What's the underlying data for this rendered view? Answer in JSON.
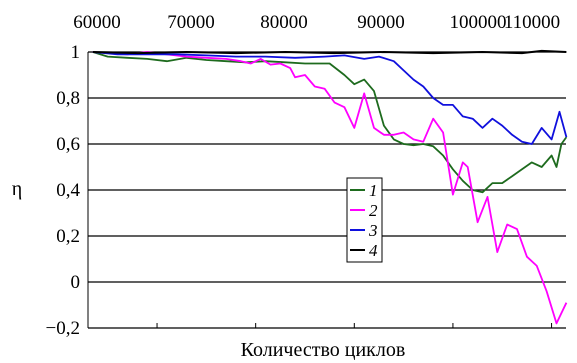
{
  "chart_data": {
    "type": "line",
    "xlabel": "Количество циклов",
    "ylabel": "η",
    "xlim": [
      63000,
      111500
    ],
    "ylim": [
      -0.2,
      1.0
    ],
    "x_ticks": [
      60000,
      70000,
      80000,
      90000,
      100000,
      110000
    ],
    "x_tick_labels": [
      "60000",
      "70000",
      "80000",
      "90000",
      "100000",
      "110000"
    ],
    "y_ticks": [
      1,
      0.8,
      0.6,
      0.4,
      0.2,
      0,
      -0.2
    ],
    "y_tick_labels": [
      "1",
      "0,8",
      "0,6",
      "0,4",
      "0,2",
      "0",
      "−0,2"
    ],
    "grid": "horizontal",
    "legend_position": "center",
    "series": [
      {
        "name": "1",
        "color": "#1e6b1e",
        "points": [
          [
            63500,
            1
          ],
          [
            65000,
            0.98
          ],
          [
            67000,
            0.975
          ],
          [
            69000,
            0.97
          ],
          [
            71000,
            0.96
          ],
          [
            73000,
            0.975
          ],
          [
            75000,
            0.965
          ],
          [
            77000,
            0.96
          ],
          [
            79000,
            0.955
          ],
          [
            81000,
            0.96
          ],
          [
            83000,
            0.955
          ],
          [
            85000,
            0.95
          ],
          [
            86000,
            0.95
          ],
          [
            87500,
            0.95
          ],
          [
            89000,
            0.9
          ],
          [
            90000,
            0.86
          ],
          [
            91000,
            0.88
          ],
          [
            92000,
            0.83
          ],
          [
            93000,
            0.68
          ],
          [
            94000,
            0.62
          ],
          [
            95000,
            0.6
          ],
          [
            96000,
            0.595
          ],
          [
            97000,
            0.6
          ],
          [
            98000,
            0.59
          ],
          [
            99000,
            0.55
          ],
          [
            100000,
            0.49
          ],
          [
            101000,
            0.44
          ],
          [
            102000,
            0.4
          ],
          [
            103000,
            0.39
          ],
          [
            104000,
            0.43
          ],
          [
            105000,
            0.43
          ],
          [
            106000,
            0.46
          ],
          [
            107000,
            0.49
          ],
          [
            108000,
            0.52
          ],
          [
            109000,
            0.5
          ],
          [
            110000,
            0.55
          ],
          [
            110500,
            0.5
          ],
          [
            111000,
            0.6
          ],
          [
            111500,
            0.63
          ]
        ]
      },
      {
        "name": "2",
        "color": "#ff00ff",
        "points": [
          [
            63500,
            1
          ],
          [
            65000,
            0.995
          ],
          [
            67000,
            0.99
          ],
          [
            69000,
            1
          ],
          [
            71000,
            0.99
          ],
          [
            73000,
            0.98
          ],
          [
            75000,
            0.975
          ],
          [
            77000,
            0.97
          ],
          [
            78500,
            0.96
          ],
          [
            79500,
            0.95
          ],
          [
            80500,
            0.97
          ],
          [
            81500,
            0.945
          ],
          [
            82500,
            0.95
          ],
          [
            83500,
            0.93
          ],
          [
            84000,
            0.89
          ],
          [
            85000,
            0.9
          ],
          [
            86000,
            0.85
          ],
          [
            87000,
            0.84
          ],
          [
            88000,
            0.78
          ],
          [
            89000,
            0.76
          ],
          [
            90000,
            0.67
          ],
          [
            91000,
            0.82
          ],
          [
            92000,
            0.67
          ],
          [
            93000,
            0.64
          ],
          [
            94000,
            0.64
          ],
          [
            95000,
            0.65
          ],
          [
            96000,
            0.62
          ],
          [
            97000,
            0.61
          ],
          [
            98000,
            0.71
          ],
          [
            99000,
            0.65
          ],
          [
            100000,
            0.38
          ],
          [
            101000,
            0.52
          ],
          [
            101500,
            0.5
          ],
          [
            102500,
            0.26
          ],
          [
            103500,
            0.37
          ],
          [
            104500,
            0.13
          ],
          [
            105500,
            0.25
          ],
          [
            106500,
            0.23
          ],
          [
            107500,
            0.11
          ],
          [
            108500,
            0.07
          ],
          [
            109500,
            -0.04
          ],
          [
            110500,
            -0.18
          ],
          [
            111500,
            -0.09
          ]
        ]
      },
      {
        "name": "3",
        "color": "#1010dd",
        "points": [
          [
            63500,
            1
          ],
          [
            66000,
            0.99
          ],
          [
            69000,
            0.99
          ],
          [
            72000,
            0.99
          ],
          [
            75000,
            0.985
          ],
          [
            78000,
            0.98
          ],
          [
            81000,
            0.98
          ],
          [
            84000,
            0.975
          ],
          [
            87000,
            0.98
          ],
          [
            89000,
            0.985
          ],
          [
            91000,
            0.97
          ],
          [
            92500,
            0.98
          ],
          [
            94000,
            0.96
          ],
          [
            95000,
            0.92
          ],
          [
            96000,
            0.88
          ],
          [
            97000,
            0.85
          ],
          [
            98000,
            0.8
          ],
          [
            99000,
            0.77
          ],
          [
            100000,
            0.77
          ],
          [
            101000,
            0.72
          ],
          [
            102000,
            0.71
          ],
          [
            103000,
            0.67
          ],
          [
            104000,
            0.71
          ],
          [
            105000,
            0.68
          ],
          [
            106000,
            0.64
          ],
          [
            107000,
            0.61
          ],
          [
            108000,
            0.6
          ],
          [
            109000,
            0.67
          ],
          [
            110000,
            0.62
          ],
          [
            110800,
            0.74
          ],
          [
            111500,
            0.63
          ]
        ]
      },
      {
        "name": "4",
        "color": "#000000",
        "points": [
          [
            63500,
            1
          ],
          [
            68000,
            0.995
          ],
          [
            73000,
            1
          ],
          [
            78000,
            0.995
          ],
          [
            83000,
            1
          ],
          [
            88000,
            0.995
          ],
          [
            93000,
            1
          ],
          [
            98000,
            0.995
          ],
          [
            103000,
            1
          ],
          [
            107000,
            0.995
          ],
          [
            109000,
            1.005
          ],
          [
            111500,
            1
          ]
        ]
      }
    ]
  }
}
